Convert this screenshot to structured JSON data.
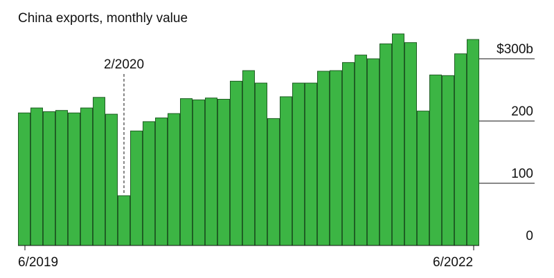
{
  "chart_data": {
    "type": "bar",
    "title": "China exports, monthly value",
    "x_start_label": "6/2019",
    "x_end_label": "6/2022",
    "values": [
      213,
      221,
      215,
      217,
      213,
      221,
      238,
      211,
      80,
      184,
      199,
      205,
      212,
      236,
      234,
      237,
      235,
      264,
      281,
      261,
      204,
      239,
      261,
      261,
      280,
      281,
      294,
      306,
      300,
      324,
      340,
      326,
      216,
      274,
      273,
      308,
      331
    ],
    "ylim": [
      0,
      340
    ],
    "yticks": [
      {
        "value": 0,
        "label": "0"
      },
      {
        "value": 100,
        "label": "100"
      },
      {
        "value": 200,
        "label": "200"
      },
      {
        "value": 300,
        "label": "$300b"
      }
    ],
    "annotation": {
      "label": "2/2020",
      "index": 8
    },
    "grid": true,
    "bar_color": "#3cb544",
    "bar_stroke": "#1f5e24"
  }
}
